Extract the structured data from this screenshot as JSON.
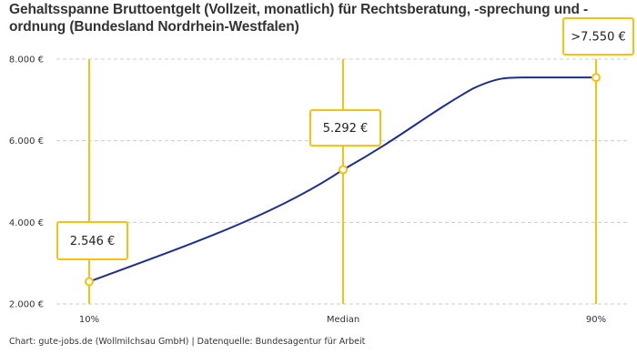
{
  "chart_data": {
    "type": "line",
    "title": "Gehaltsspanne Bruttoentgelt (Vollzeit, monatlich) für Rechtsberatung, -sprechung und -ordnung (Bundesland Nordrhein-Westfalen)",
    "categories": [
      "10%",
      "Median",
      "90%"
    ],
    "values": [
      2546,
      5292,
      7550
    ],
    "data_labels": [
      "2.546 €",
      "5.292 €",
      ">7.550 €"
    ],
    "y_ticks": [
      2000,
      4000,
      6000,
      8000
    ],
    "y_tick_labels": [
      "2.000 €",
      "4.000 €",
      "6.000 €",
      "8.000 €"
    ],
    "ylim": [
      2000,
      8000
    ],
    "grid": "horizontal dashed",
    "colors": {
      "line": "#1a2e8f",
      "marker": "#f5c211",
      "grid": "#cccccc"
    }
  },
  "footer": "Chart: gute-jobs.de (Wollmilchsau GmbH) | Datenquelle: Bundesagentur für Arbeit"
}
